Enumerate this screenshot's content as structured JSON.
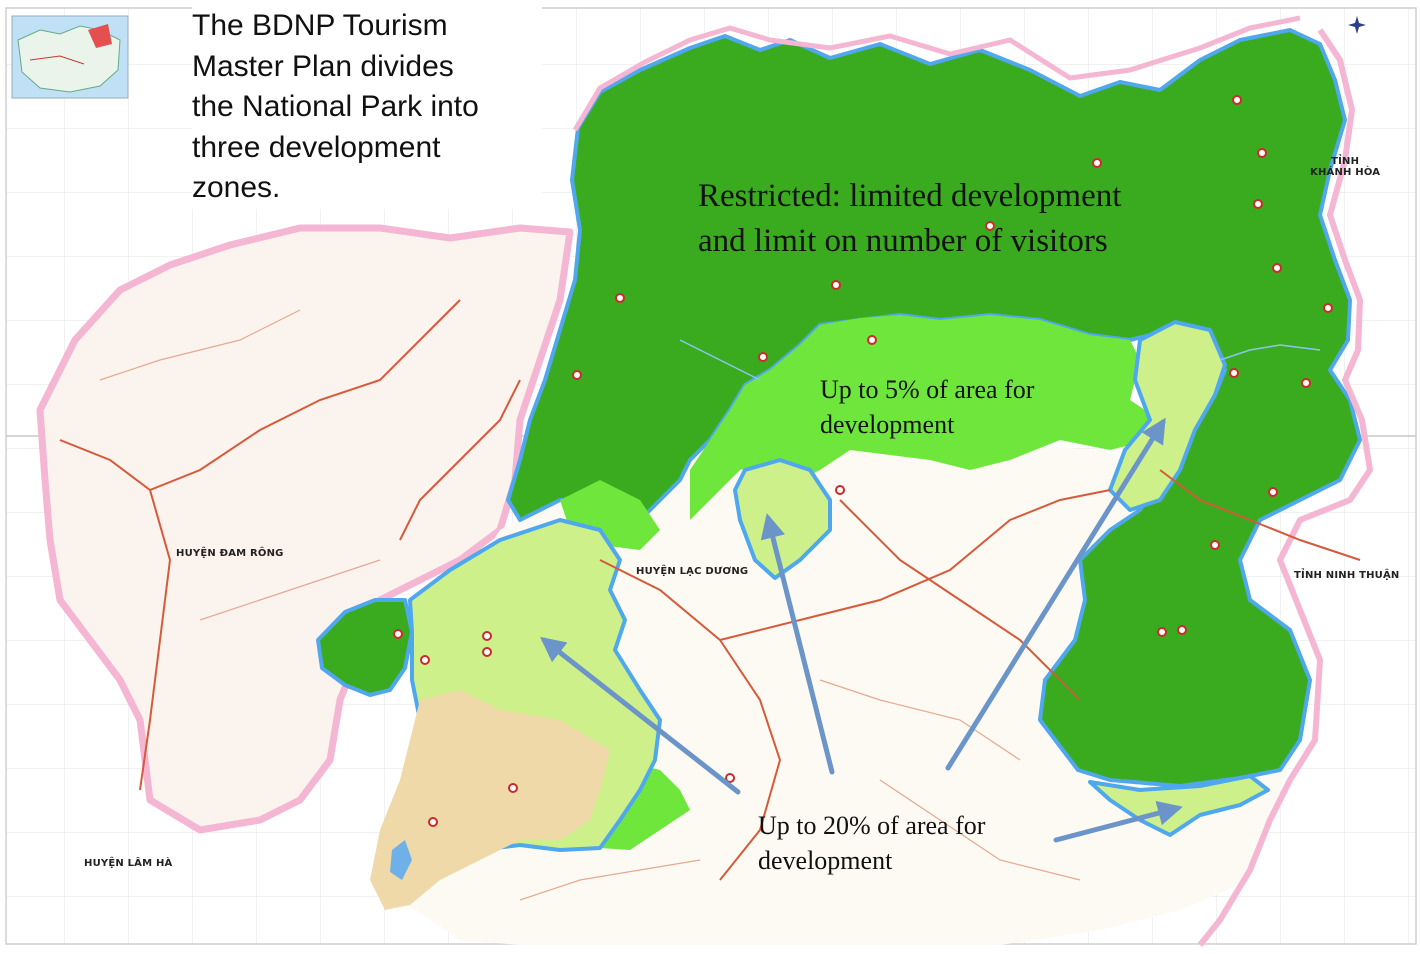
{
  "intro_text": [
    "The BDNP Tourism",
    "Master Plan divides",
    "the National Park into",
    "three development",
    "zones."
  ],
  "zones": {
    "restricted": [
      "Restricted: limited development",
      "and limit on number of visitors"
    ],
    "up_to_5": [
      "Up to 5% of area for",
      "development"
    ],
    "up_to_20": [
      "Up to 20% of area for",
      "development"
    ]
  },
  "place_names": {
    "khanh_hoa": [
      "TỈNH",
      "KHÁNH HÒA"
    ],
    "ninh_thuan": "TỈNH NINH THUẬN",
    "dam_rong": "HUYỆN ĐAM RÔNG",
    "lac_duong": "HUYỆN LẠC DƯƠNG",
    "lam_ha": "HUYỆN LÂM HÀ"
  },
  "colors": {
    "restricted_zone": "#3aab1e",
    "five_percent_zone": "#6ee63c",
    "twenty_percent_zone": "#cdf08a",
    "tan_area": "#efd9a8",
    "park_boundary": "#4fa7ee",
    "province_border": "#f4b6d2",
    "arrow": "#6b94c8"
  }
}
